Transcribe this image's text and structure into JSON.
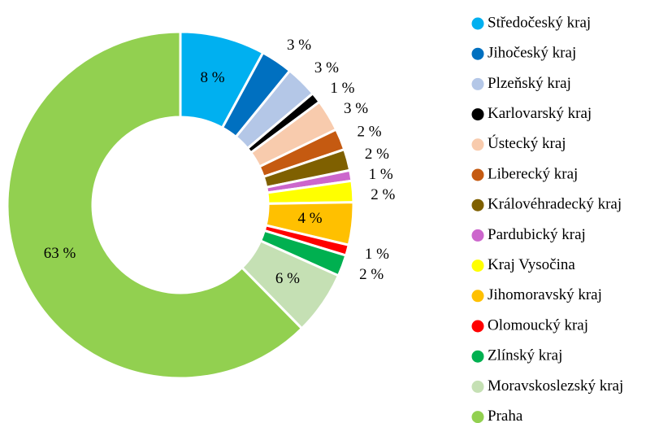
{
  "chart_data": {
    "type": "doughnut",
    "categories": [
      "Středočeský kraj",
      "Jihočeský kraj",
      "Plzeňský kraj",
      "Karlovarský kraj",
      "Ústecký kraj",
      "Liberecký kraj",
      "Královéhradecký kraj",
      "Pardubický kraj",
      "Kraj Vysočina",
      "Jihomoravský kraj",
      "Olomoucký kraj",
      "Zlínský kraj",
      "Moravskoslezský kraj",
      "Praha"
    ],
    "values": [
      8,
      3,
      3,
      1,
      3,
      2,
      2,
      1,
      2,
      4,
      1,
      2,
      6,
      63
    ],
    "value_labels": [
      "8 %",
      "3 %",
      "3 %",
      "1 %",
      "3 %",
      "2 %",
      "2 %",
      "1 %",
      "2 %",
      "4 %",
      "1 %",
      "2 %",
      "6 %",
      "63 %"
    ],
    "colors": [
      "#00b0f0",
      "#0070c0",
      "#b4c7e7",
      "#000000",
      "#f8cbad",
      "#c55a11",
      "#7f6000",
      "#cc66cc",
      "#ffff00",
      "#ffc000",
      "#ff0000",
      "#00b050",
      "#c5e0b4",
      "#92d050"
    ],
    "legend": "right"
  }
}
